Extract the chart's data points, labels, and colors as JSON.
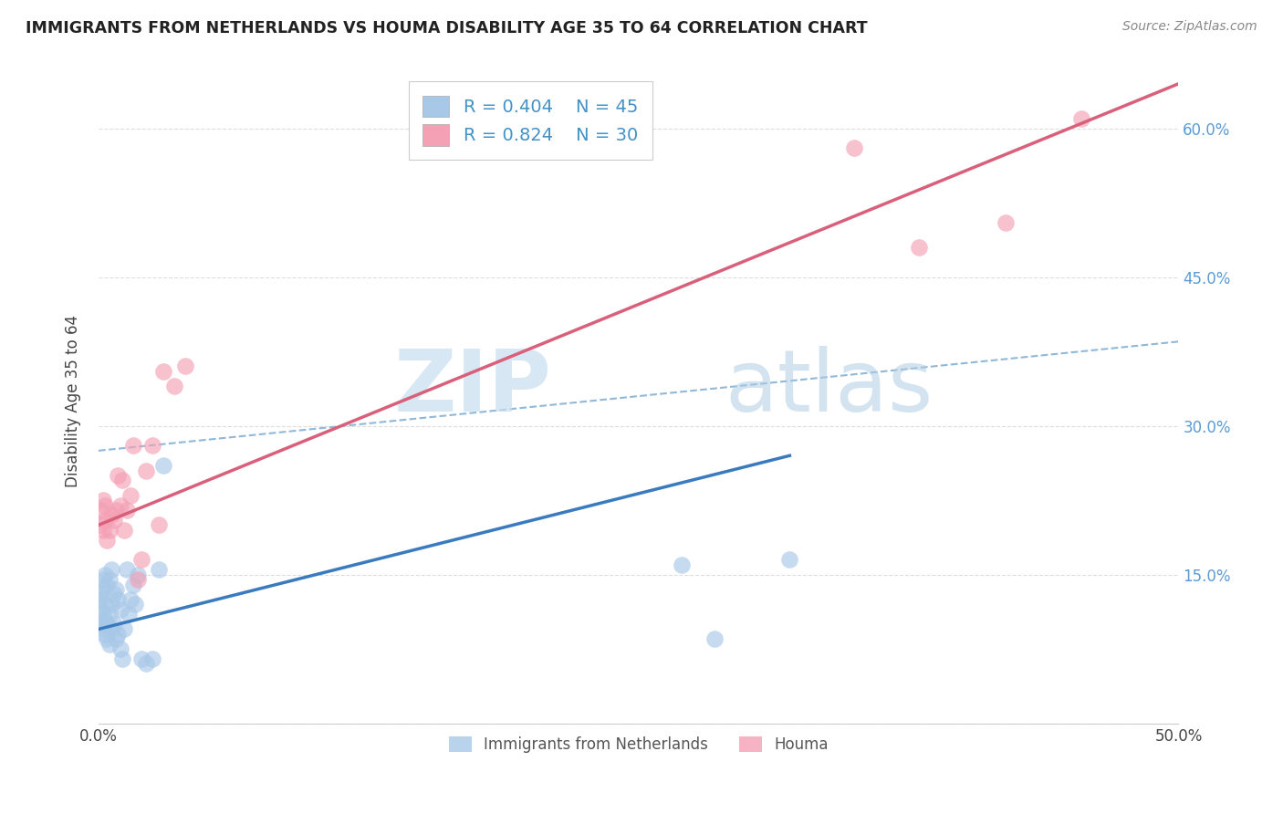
{
  "title": "IMMIGRANTS FROM NETHERLANDS VS HOUMA DISABILITY AGE 35 TO 64 CORRELATION CHART",
  "source": "Source: ZipAtlas.com",
  "ylabel": "Disability Age 35 to 64",
  "xlim": [
    0,
    0.5
  ],
  "ylim": [
    0,
    0.65
  ],
  "legend_R1": "R = 0.404",
  "legend_N1": "N = 45",
  "legend_R2": "R = 0.824",
  "legend_N2": "N = 30",
  "series1_label": "Immigrants from Netherlands",
  "series2_label": "Houma",
  "color_blue": "#a8c8e8",
  "color_pink": "#f4a0b5",
  "color_blue_line": "#3a7bbf",
  "color_pink_line": "#d9607a",
  "color_dashed": "#90b8d8",
  "blue_points_x": [
    0.001,
    0.001,
    0.001,
    0.001,
    0.002,
    0.002,
    0.002,
    0.002,
    0.003,
    0.003,
    0.003,
    0.003,
    0.004,
    0.004,
    0.004,
    0.005,
    0.005,
    0.005,
    0.006,
    0.006,
    0.006,
    0.007,
    0.007,
    0.008,
    0.008,
    0.009,
    0.009,
    0.01,
    0.01,
    0.011,
    0.012,
    0.013,
    0.014,
    0.015,
    0.016,
    0.017,
    0.018,
    0.02,
    0.022,
    0.025,
    0.028,
    0.03,
    0.27,
    0.285,
    0.32
  ],
  "blue_points_y": [
    0.1,
    0.115,
    0.125,
    0.13,
    0.095,
    0.11,
    0.135,
    0.145,
    0.09,
    0.105,
    0.12,
    0.15,
    0.085,
    0.1,
    0.14,
    0.08,
    0.11,
    0.145,
    0.095,
    0.12,
    0.155,
    0.1,
    0.13,
    0.085,
    0.135,
    0.09,
    0.125,
    0.075,
    0.115,
    0.065,
    0.095,
    0.155,
    0.11,
    0.125,
    0.14,
    0.12,
    0.15,
    0.065,
    0.06,
    0.065,
    0.155,
    0.26,
    0.16,
    0.085,
    0.165
  ],
  "pink_points_x": [
    0.001,
    0.001,
    0.002,
    0.002,
    0.003,
    0.003,
    0.004,
    0.005,
    0.006,
    0.007,
    0.008,
    0.009,
    0.01,
    0.011,
    0.012,
    0.013,
    0.015,
    0.016,
    0.018,
    0.02,
    0.022,
    0.025,
    0.028,
    0.03,
    0.035,
    0.04,
    0.35,
    0.38,
    0.42,
    0.455
  ],
  "pink_points_y": [
    0.2,
    0.215,
    0.195,
    0.225,
    0.205,
    0.22,
    0.185,
    0.195,
    0.21,
    0.205,
    0.215,
    0.25,
    0.22,
    0.245,
    0.195,
    0.215,
    0.23,
    0.28,
    0.145,
    0.165,
    0.255,
    0.28,
    0.2,
    0.355,
    0.34,
    0.36,
    0.58,
    0.48,
    0.505,
    0.61
  ],
  "watermark_zip": "ZIP",
  "watermark_atlas": "atlas",
  "background_color": "#ffffff",
  "grid_color": "#dddddd",
  "blue_line_x0": 0.0,
  "blue_line_x1": 0.32,
  "blue_line_y0": 0.095,
  "blue_line_y1": 0.27,
  "pink_line_x0": 0.0,
  "pink_line_x1": 0.5,
  "pink_line_y0": 0.2,
  "pink_line_y1": 0.645,
  "dash_line_x0": 0.0,
  "dash_line_x1": 0.5,
  "dash_line_y0": 0.275,
  "dash_line_y1": 0.385
}
